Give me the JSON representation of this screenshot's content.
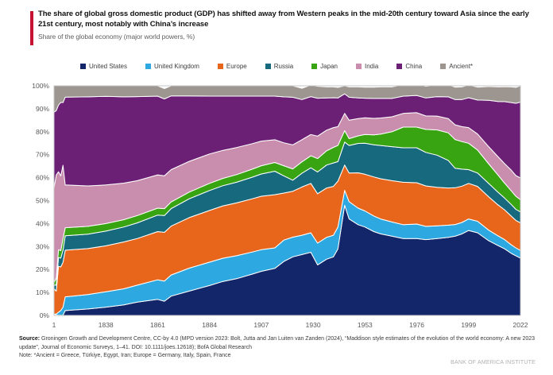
{
  "header": {
    "title": "The share of global gross domestic product (GDP) has shifted away from Western peaks in the mid-20th century toward Asia since the early 21st century, most notably with China’s increase",
    "subtitle": "Share of the global economy (major world powers, %)",
    "accent_color": "#c41230"
  },
  "chart_data": {
    "type": "area",
    "stacked": true,
    "normalized": true,
    "title": "Share of the global economy (major world powers, %)",
    "ylim": [
      0,
      100
    ],
    "grid": false,
    "legend_position": "top",
    "frame_color": "#c6c6c6",
    "separator_color": "#ffffff",
    "y_ticks": [
      "0%",
      "10%",
      "20%",
      "30%",
      "40%",
      "50%",
      "60%",
      "70%",
      "80%",
      "90%",
      "100%"
    ],
    "x_ticks": [
      "1",
      "1838",
      "1861",
      "1884",
      "1907",
      "1930",
      "1953",
      "1976",
      "1999",
      "2022"
    ],
    "years": [
      1,
      1000,
      1500,
      1600,
      1700,
      1820,
      1830,
      1838,
      1846,
      1852,
      1861,
      1864,
      1867,
      1875,
      1884,
      1890,
      1896,
      1903,
      1907,
      1913,
      1917,
      1921,
      1925,
      1929,
      1932,
      1936,
      1939,
      1941,
      1944,
      1946,
      1950,
      1953,
      1957,
      1960,
      1965,
      1970,
      1976,
      1980,
      1985,
      1990,
      1993,
      1996,
      1999,
      2003,
      2008,
      2012,
      2015,
      2018,
      2020,
      2022
    ],
    "series": [
      {
        "name": "United States",
        "color": "#14266a",
        "values": [
          0.2,
          0.2,
          0.1,
          0.1,
          0.1,
          2.1,
          2.8,
          3.6,
          4.6,
          5.8,
          7.0,
          6.2,
          8.4,
          10.6,
          13.0,
          14.8,
          16.0,
          18.0,
          19.2,
          20.5,
          23.5,
          25.5,
          26.5,
          27.5,
          22.0,
          24.5,
          25.5,
          29.0,
          48.0,
          42.0,
          39.5,
          38.5,
          36.5,
          35.5,
          34.5,
          33.5,
          33.5,
          33.0,
          33.5,
          34.0,
          34.5,
          35.5,
          37.0,
          36.0,
          32.5,
          30.5,
          29.0,
          27.0,
          26.0,
          25.0
        ]
      },
      {
        "name": "United Kingdom",
        "color": "#2da8e0",
        "values": [
          0.4,
          0.4,
          1.3,
          2.0,
          3.5,
          6.0,
          6.3,
          6.7,
          7.0,
          7.4,
          8.5,
          8.8,
          9.2,
          10.0,
          10.2,
          10.1,
          10.0,
          9.6,
          9.4,
          8.9,
          9.3,
          8.6,
          8.4,
          8.5,
          9.5,
          9.5,
          9.4,
          9.5,
          6.5,
          7.5,
          7.2,
          7.0,
          6.8,
          6.5,
          6.2,
          6.0,
          6.3,
          5.8,
          5.5,
          5.3,
          5.1,
          5.0,
          5.0,
          5.0,
          4.6,
          4.2,
          4.0,
          3.7,
          3.4,
          3.3
        ]
      },
      {
        "name": "Europe",
        "color": "#e8661c",
        "values": [
          11.0,
          10.0,
          20.0,
          19.0,
          19.5,
          20.3,
          20.0,
          20.0,
          20.4,
          20.3,
          21.0,
          21.2,
          21.3,
          22.0,
          22.5,
          22.8,
          23.0,
          23.2,
          23.3,
          23.2,
          20.5,
          20.0,
          21.0,
          21.5,
          21.5,
          21.5,
          21.3,
          20.0,
          11.0,
          12.5,
          15.4,
          16.0,
          17.0,
          17.5,
          18.0,
          18.5,
          18.0,
          17.6,
          16.8,
          16.2,
          16.0,
          15.8,
          15.5,
          15.2,
          14.5,
          13.5,
          13.0,
          12.5,
          12.0,
          12.0
        ]
      },
      {
        "name": "Russia",
        "color": "#17697e",
        "values": [
          1.6,
          2.6,
          3.8,
          3.9,
          5.3,
          6.3,
          6.3,
          6.4,
          6.5,
          6.8,
          7.2,
          7.3,
          7.6,
          8.2,
          8.7,
          8.8,
          9.0,
          9.4,
          9.7,
          10.2,
          7.5,
          4.8,
          6.0,
          6.8,
          9.5,
          10.0,
          10.2,
          8.5,
          10.0,
          12.0,
          12.8,
          13.5,
          14.0,
          14.5,
          14.8,
          15.0,
          15.2,
          14.6,
          14.0,
          12.0,
          8.5,
          7.4,
          6.0,
          5.8,
          5.8,
          5.5,
          5.1,
          5.0,
          4.8,
          4.8
        ]
      },
      {
        "name": "Japan",
        "color": "#38a412",
        "values": [
          1.3,
          3.0,
          3.4,
          3.2,
          5.0,
          3.5,
          3.4,
          3.3,
          3.2,
          3.2,
          3.0,
          3.0,
          2.9,
          2.9,
          3.1,
          3.2,
          3.3,
          3.5,
          3.6,
          3.8,
          4.4,
          4.9,
          5.0,
          5.2,
          5.8,
          6.2,
          6.8,
          7.0,
          5.0,
          3.0,
          3.3,
          3.8,
          4.3,
          5.0,
          6.5,
          9.0,
          9.0,
          10.0,
          11.0,
          12.0,
          12.5,
          12.0,
          11.5,
          10.0,
          8.5,
          7.5,
          6.5,
          6.0,
          5.7,
          5.3
        ]
      },
      {
        "name": "India",
        "color": "#c98dad",
        "values": [
          41.0,
          45.0,
          34.0,
          32.6,
          32.0,
          18.6,
          17.6,
          16.8,
          15.9,
          15.2,
          14.5,
          14.3,
          14.1,
          13.4,
          12.8,
          12.2,
          11.8,
          11.1,
          10.7,
          9.9,
          10.0,
          10.5,
          9.6,
          9.3,
          9.8,
          9.0,
          8.6,
          8.2,
          7.5,
          8.0,
          7.5,
          7.3,
          7.2,
          7.0,
          6.5,
          6.0,
          6.3,
          5.9,
          6.0,
          6.2,
          6.4,
          6.5,
          6.8,
          7.0,
          7.5,
          8.0,
          8.5,
          9.0,
          9.0,
          9.5
        ]
      },
      {
        "name": "China",
        "color": "#6b2076",
        "values": [
          33.0,
          28.0,
          29.0,
          32.0,
          27.3,
          38.3,
          38.8,
          38.6,
          37.6,
          36.6,
          34.3,
          33.5,
          32.1,
          28.5,
          25.2,
          23.6,
          22.4,
          20.7,
          19.6,
          19.0,
          20.0,
          20.7,
          17.5,
          16.5,
          16.5,
          14.0,
          13.0,
          12.5,
          8.5,
          10.0,
          9.0,
          8.5,
          8.7,
          8.5,
          8.0,
          7.5,
          7.5,
          7.8,
          8.5,
          9.5,
          11.0,
          11.8,
          13.0,
          14.8,
          20.3,
          24.0,
          27.0,
          29.5,
          31.5,
          33.0
        ]
      },
      {
        "name": "Ancient*",
        "color": "#9c9590",
        "values": [
          11.5,
          10.8,
          8.4,
          7.2,
          7.3,
          4.9,
          4.8,
          4.6,
          4.8,
          4.7,
          4.5,
          4.5,
          4.4,
          4.4,
          4.5,
          4.5,
          4.5,
          4.5,
          4.5,
          4.5,
          4.8,
          5.0,
          4.9,
          5.0,
          5.2,
          4.8,
          4.7,
          4.6,
          3.5,
          4.5,
          4.8,
          4.8,
          4.9,
          5.0,
          5.0,
          5.0,
          5.0,
          5.1,
          5.0,
          5.2,
          5.4,
          5.5,
          5.5,
          5.6,
          6.0,
          6.3,
          6.5,
          6.8,
          6.9,
          7.1
        ]
      }
    ]
  },
  "footer": {
    "source_label": "Source:",
    "source_text": " Groningen Growth and Development Centre, CC-by 4.0 (MPD version 2023: Bolt, Jutta and Jan Luiten van Zanden (2024), “Maddison style estimates of the evolution of the world economy: A new 2023 update”, Journal of Economic Surveys, 1–41. DOI: 10.1111/joes.12618); BofA Global Research",
    "note_text": "Note: *Ancient = Greece, Türkiye, Egypt, Iran; Europe = Germany, Italy, Spain, France",
    "brand": "BANK OF AMERICA INSTITUTE"
  }
}
